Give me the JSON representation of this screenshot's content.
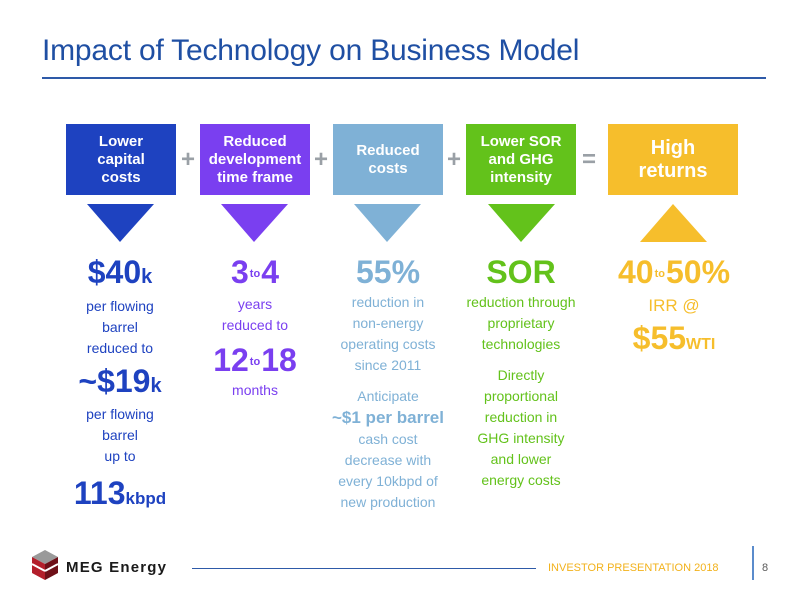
{
  "title": "Impact of Technology on Business Model",
  "colors": {
    "title": "#1f4fa3",
    "dark_blue": "#1e42c0",
    "purple": "#7a3ff0",
    "light_blue": "#7fb1d6",
    "green": "#63c21b",
    "gold": "#f6be2c"
  },
  "boxes": [
    {
      "label": "Lower capital costs"
    },
    {
      "label": "Reduced development time frame"
    },
    {
      "label": "Reduced costs"
    },
    {
      "label": "Lower SOR and GHG intensity"
    },
    {
      "label": "High returns"
    }
  ],
  "operators": [
    "+",
    "+",
    "+",
    "="
  ],
  "col1": {
    "num1": "$40",
    "num1_suffix": "k",
    "text1": [
      "per flowing",
      "barrel",
      "reduced to"
    ],
    "num2": "~$19",
    "num2_suffix": "k",
    "text2": [
      "per flowing",
      "barrel",
      "up to"
    ],
    "num3": "113",
    "num3_suffix": "kbpd"
  },
  "col2": {
    "num1a": "3",
    "to1": "to",
    "num1b": "4",
    "text1": [
      "years",
      "reduced to"
    ],
    "num2a": "12",
    "to2": "to",
    "num2b": "18",
    "text2": "months"
  },
  "col3": {
    "num": "55%",
    "text1": [
      "reduction in",
      "non-energy",
      "operating costs",
      "since 2011"
    ],
    "anticipate": "Anticipate",
    "highlight": "~$1 per barrel",
    "text2": [
      "cash cost",
      "decrease with",
      "every 10kbpd of",
      "new production"
    ]
  },
  "col4": {
    "num": "SOR",
    "text1": [
      "reduction through",
      "proprietary",
      "technologies"
    ],
    "text2": [
      "Directly",
      "proportional",
      "reduction in",
      "GHG intensity",
      "and lower",
      "energy costs"
    ]
  },
  "col5": {
    "num_a": "40",
    "to": "to",
    "num_b": "50%",
    "irr": "IRR @",
    "price": "$55",
    "price_suffix": "WTI"
  },
  "footer": {
    "brand": "MEG Energy",
    "text": "INVESTOR PRESENTATION 2018",
    "page": "8"
  }
}
